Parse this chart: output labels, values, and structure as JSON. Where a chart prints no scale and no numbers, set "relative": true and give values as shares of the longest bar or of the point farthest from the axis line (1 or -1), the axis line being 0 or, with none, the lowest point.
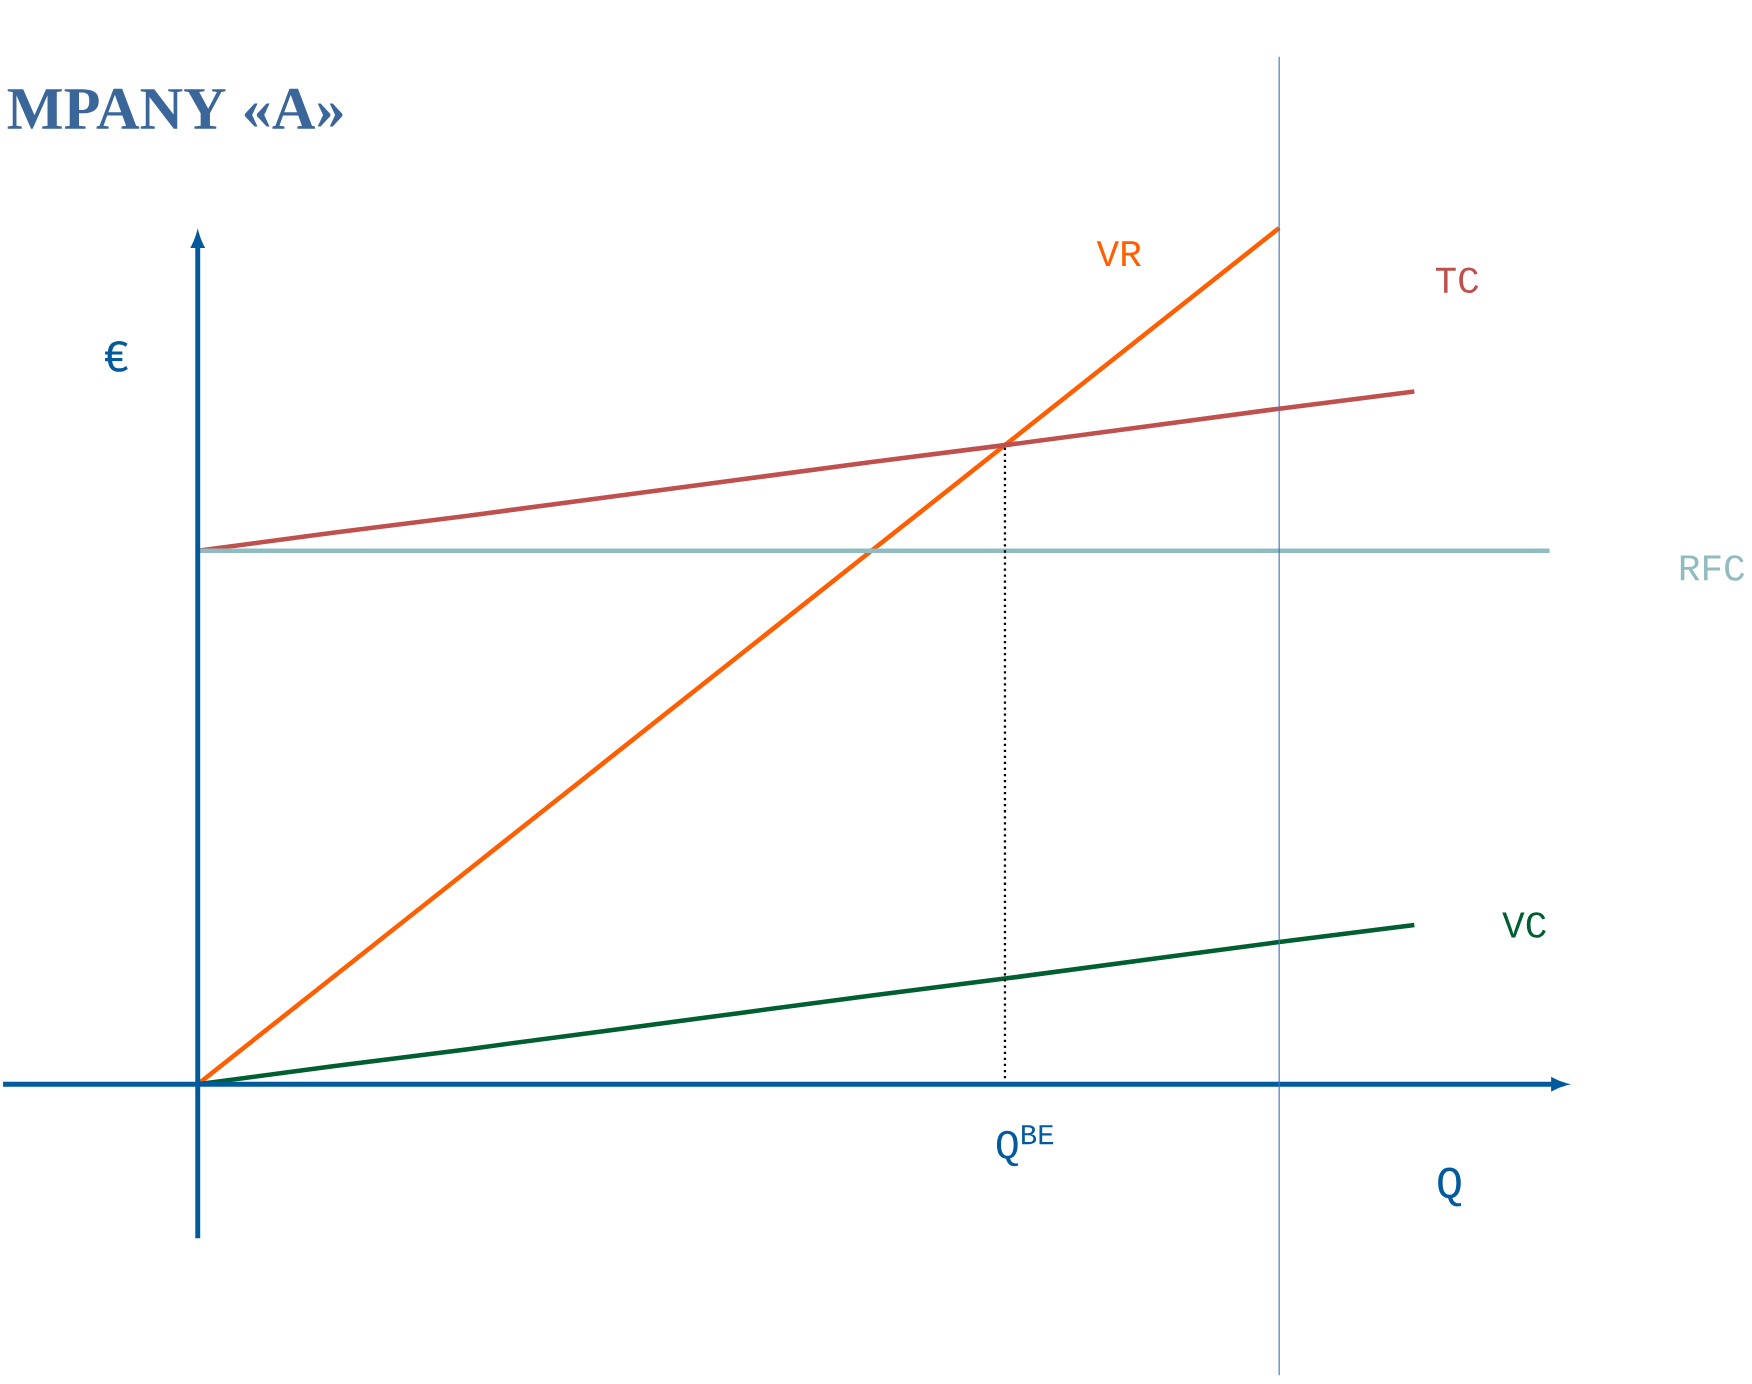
{
  "chart_data": {
    "type": "line",
    "title": "MPANY «A»",
    "xlabel": "Q",
    "ylabel": "€",
    "relative": true,
    "categories": [
      null,
      null,
      null,
      null,
      null,
      null,
      null,
      null,
      null,
      null,
      null
    ],
    "series": [
      {
        "name": "VR",
        "color": "#ff5f00",
        "values": [
          0,
          0.125,
          0.25,
          0.375,
          0.5,
          0.625,
          0.75,
          0.875,
          1,
          null,
          null
        ]
      },
      {
        "name": "TC",
        "color": "#c0504d",
        "values": [
          0.623,
          0.644,
          0.664,
          0.685,
          0.706,
          0.727,
          0.747,
          0.768,
          0.789,
          0.809,
          null
        ]
      },
      {
        "name": "RFC",
        "color": "#8fbcc0",
        "values": [
          0.623,
          0.623,
          0.623,
          0.623,
          0.623,
          0.623,
          0.623,
          0.623,
          0.623,
          0.623,
          0.623
        ]
      },
      {
        "name": "VC",
        "color": "#005f30",
        "values": [
          0,
          0.021,
          0.041,
          0.062,
          0.083,
          0.104,
          0.124,
          0.145,
          0.166,
          0.186,
          null
        ]
      }
    ],
    "annotations": [
      "Q$^{BE}$"
    ],
    "marker": "none",
    "line_style": "solid"
  }
}
